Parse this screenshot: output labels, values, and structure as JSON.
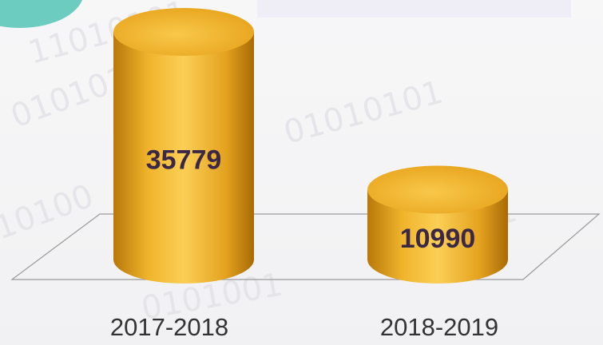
{
  "chart_data": {
    "type": "bar",
    "categories": [
      "2017-2018",
      "2018-2019"
    ],
    "values": [
      35779,
      10990
    ],
    "color": "#f0b42c"
  }
}
